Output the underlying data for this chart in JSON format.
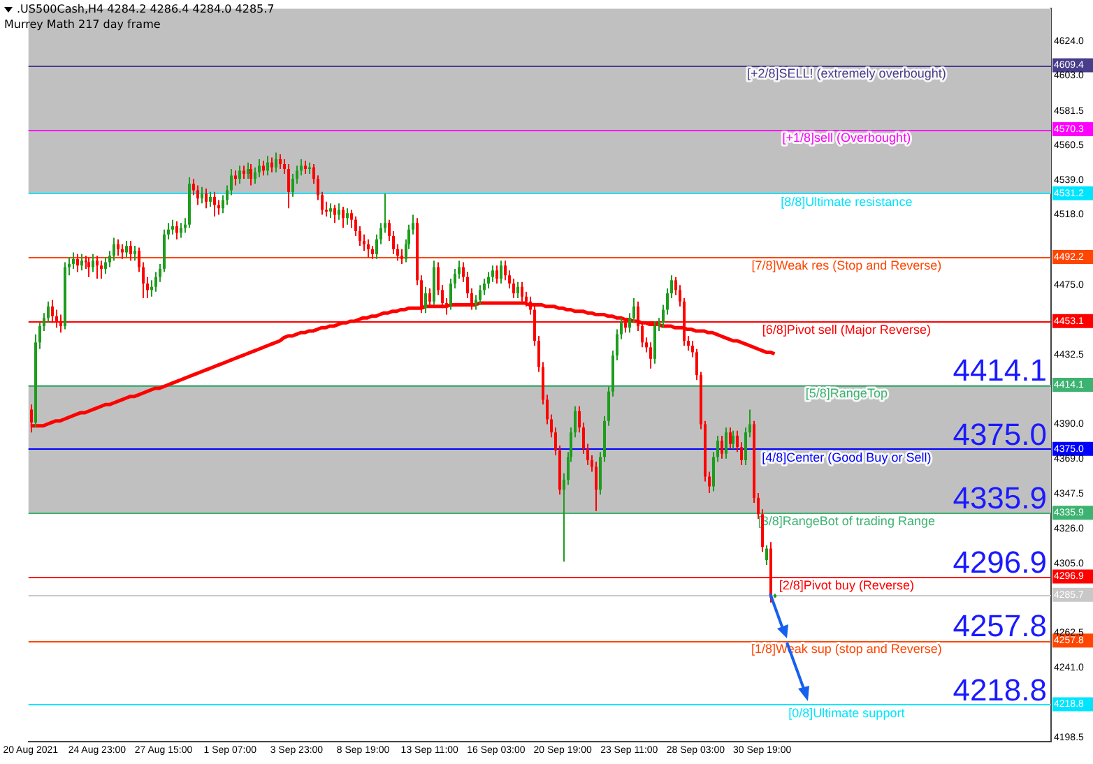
{
  "chart_data": {
    "type": "candlestick",
    "title": ".US500Cash,H4  4284.2 4286.4 4284.0 4285.7",
    "subtitle": "Murrey Math 217 day frame",
    "categories": [
      "20 Aug 2021",
      null,
      null,
      null,
      null,
      null,
      null,
      null,
      null,
      null,
      null,
      null,
      null,
      null,
      null,
      null,
      "24 Aug 23:00",
      null,
      null,
      null,
      null,
      null,
      null,
      null,
      null,
      null,
      null,
      null,
      null,
      null,
      null,
      null,
      "27 Aug 15:00",
      null,
      null,
      null,
      null,
      null,
      null,
      null,
      null,
      null,
      null,
      null,
      null,
      null,
      null,
      null,
      "1 Sep 07:00",
      null,
      null,
      null,
      null,
      null,
      null,
      null,
      null,
      null,
      null,
      null,
      null,
      null,
      null,
      null,
      "3 Sep 23:00",
      null,
      null,
      null,
      null,
      null,
      null,
      null,
      null,
      null,
      null,
      null,
      null,
      null,
      null,
      null,
      "8 Sep 19:00",
      null,
      null,
      null,
      null,
      null,
      null,
      null,
      null,
      null,
      null,
      null,
      null,
      null,
      null,
      null,
      "13 Sep 11:00",
      null,
      null,
      null,
      null,
      null,
      null,
      null,
      null,
      null,
      null,
      null,
      null,
      null,
      null,
      null,
      "16 Sep 03:00",
      null,
      null,
      null,
      null,
      null,
      null,
      null,
      null,
      null,
      null,
      null,
      null,
      null,
      null,
      null,
      "20 Sep 19:00",
      null,
      null,
      null,
      null,
      null,
      null,
      null,
      null,
      null,
      null,
      null,
      null,
      null,
      null,
      null,
      "23 Sep 11:00",
      null,
      null,
      null,
      null,
      null,
      null,
      null,
      null,
      null,
      null,
      null,
      null,
      null,
      null,
      null,
      "28 Sep 03:00",
      null,
      null,
      null,
      null,
      null,
      null,
      null,
      null,
      null,
      null,
      null,
      null,
      null,
      null,
      null,
      "30 Sep 19:00",
      null,
      null,
      null,
      null,
      null,
      null,
      null,
      null,
      null,
      null,
      null,
      null,
      null,
      null,
      null,
      null,
      null,
      null,
      null,
      null,
      null,
      null,
      null,
      null,
      null,
      null,
      null,
      null,
      null,
      null,
      null,
      null,
      null,
      null,
      null,
      null,
      null,
      null,
      null,
      null,
      null,
      null,
      null,
      null,
      null,
      null,
      null,
      null,
      null,
      null,
      null,
      null,
      null,
      null,
      null,
      null,
      null,
      null,
      null,
      null,
      null,
      null,
      null,
      null,
      null,
      null,
      null,
      null,
      null
    ],
    "ohlc": [
      [
        4399,
        4402,
        4385,
        4391
      ],
      [
        4391,
        4445,
        4388,
        4440
      ],
      [
        4440,
        4452,
        4436,
        4450
      ],
      [
        4450,
        4458,
        4447,
        4455
      ],
      [
        4455,
        4465,
        4452,
        4462
      ],
      [
        4462,
        4466,
        4452,
        4456
      ],
      [
        4456,
        4460,
        4449,
        4453
      ],
      [
        4453,
        4457,
        4446,
        4450
      ],
      [
        4450,
        4489,
        4448,
        4486
      ],
      [
        4486,
        4492,
        4481,
        4488
      ],
      [
        4488,
        4495,
        4485,
        4491
      ],
      [
        4491,
        4494,
        4483,
        4487
      ],
      [
        4487,
        4494,
        4484,
        4490
      ],
      [
        4490,
        4493,
        4485,
        4489
      ],
      [
        4489,
        4492,
        4480,
        4486
      ],
      [
        4486,
        4494,
        4483,
        4490
      ],
      [
        4490,
        4493,
        4479,
        4487
      ],
      [
        4487,
        4490,
        4479,
        4485
      ],
      [
        4485,
        4492,
        4482,
        4489
      ],
      [
        4489,
        4496,
        4486,
        4493
      ],
      [
        4493,
        4504,
        4490,
        4500
      ],
      [
        4500,
        4503,
        4493,
        4497
      ],
      [
        4497,
        4500,
        4491,
        4495
      ],
      [
        4495,
        4502,
        4492,
        4499
      ],
      [
        4499,
        4502,
        4490,
        4494
      ],
      [
        4494,
        4499,
        4490,
        4496
      ],
      [
        4496,
        4498,
        4483,
        4486
      ],
      [
        4486,
        4489,
        4467,
        4476
      ],
      [
        4476,
        4480,
        4467,
        4472
      ],
      [
        4472,
        4478,
        4468,
        4474
      ],
      [
        4474,
        4483,
        4471,
        4480
      ],
      [
        4480,
        4488,
        4477,
        4485
      ],
      [
        4485,
        4509,
        4483,
        4506
      ],
      [
        4506,
        4513,
        4503,
        4509
      ],
      [
        4509,
        4515,
        4506,
        4511
      ],
      [
        4511,
        4514,
        4503,
        4507
      ],
      [
        4507,
        4513,
        4504,
        4510
      ],
      [
        4510,
        4516,
        4507,
        4512
      ],
      [
        4512,
        4541,
        4510,
        4537
      ],
      [
        4537,
        4540,
        4530,
        4533
      ],
      [
        4533,
        4536,
        4524,
        4528
      ],
      [
        4528,
        4535,
        4525,
        4531
      ],
      [
        4531,
        4534,
        4522,
        4526
      ],
      [
        4526,
        4532,
        4523,
        4529
      ],
      [
        4529,
        4532,
        4517,
        4524
      ],
      [
        4524,
        4527,
        4518,
        4522
      ],
      [
        4522,
        4530,
        4519,
        4527
      ],
      [
        4527,
        4536,
        4524,
        4533
      ],
      [
        4533,
        4546,
        4530,
        4542
      ],
      [
        4542,
        4545,
        4536,
        4540
      ],
      [
        4540,
        4548,
        4537,
        4545
      ],
      [
        4545,
        4548,
        4540,
        4543
      ],
      [
        4543,
        4550,
        4540,
        4546
      ],
      [
        4546,
        4549,
        4536,
        4540
      ],
      [
        4540,
        4547,
        4537,
        4544
      ],
      [
        4544,
        4552,
        4541,
        4548
      ],
      [
        4548,
        4551,
        4542,
        4545
      ],
      [
        4545,
        4554,
        4542,
        4550
      ],
      [
        4550,
        4553,
        4544,
        4547
      ],
      [
        4547,
        4556,
        4544,
        4552
      ],
      [
        4552,
        4555,
        4546,
        4549
      ],
      [
        4549,
        4552,
        4543,
        4546
      ],
      [
        4546,
        4549,
        4522,
        4532
      ],
      [
        4532,
        4543,
        4529,
        4540
      ],
      [
        4540,
        4548,
        4537,
        4545
      ],
      [
        4545,
        4552,
        4542,
        4548
      ],
      [
        4548,
        4551,
        4543,
        4546
      ],
      [
        4546,
        4550,
        4543,
        4547
      ],
      [
        4547,
        4549,
        4537,
        4540
      ],
      [
        4540,
        4542,
        4527,
        4530
      ],
      [
        4530,
        4532,
        4518,
        4521
      ],
      [
        4521,
        4526,
        4517,
        4520
      ],
      [
        4520,
        4525,
        4516,
        4522
      ],
      [
        4522,
        4524,
        4513,
        4518
      ],
      [
        4518,
        4525,
        4515,
        4521
      ],
      [
        4521,
        4523,
        4510,
        4516
      ],
      [
        4516,
        4522,
        4512,
        4519
      ],
      [
        4519,
        4521,
        4510,
        4515
      ],
      [
        4515,
        4517,
        4505,
        4508
      ],
      [
        4508,
        4511,
        4499,
        4502
      ],
      [
        4502,
        4506,
        4496,
        4500
      ],
      [
        4500,
        4503,
        4492,
        4497
      ],
      [
        4497,
        4499,
        4491,
        4494
      ],
      [
        4494,
        4506,
        4491,
        4503
      ],
      [
        4503,
        4513,
        4500,
        4510
      ],
      [
        4510,
        4531,
        4507,
        4513
      ],
      [
        4513,
        4515,
        4502,
        4505
      ],
      [
        4505,
        4508,
        4494,
        4497
      ],
      [
        4497,
        4500,
        4490,
        4493
      ],
      [
        4493,
        4497,
        4488,
        4491
      ],
      [
        4491,
        4503,
        4489,
        4500
      ],
      [
        4500,
        4512,
        4497,
        4509
      ],
      [
        4509,
        4518,
        4506,
        4513
      ],
      [
        4513,
        4516,
        4475,
        4478
      ],
      [
        4478,
        4481,
        4458,
        4461
      ],
      [
        4461,
        4474,
        4458,
        4470
      ],
      [
        4470,
        4473,
        4462,
        4465
      ],
      [
        4465,
        4490,
        4463,
        4486
      ],
      [
        4486,
        4489,
        4469,
        4472
      ],
      [
        4472,
        4475,
        4461,
        4464
      ],
      [
        4464,
        4467,
        4457,
        4463
      ],
      [
        4463,
        4479,
        4460,
        4476
      ],
      [
        4476,
        4485,
        4473,
        4482
      ],
      [
        4482,
        4490,
        4479,
        4486
      ],
      [
        4486,
        4489,
        4477,
        4480
      ],
      [
        4480,
        4483,
        4467,
        4470
      ],
      [
        4470,
        4473,
        4460,
        4463
      ],
      [
        4463,
        4469,
        4460,
        4466
      ],
      [
        4466,
        4475,
        4463,
        4472
      ],
      [
        4472,
        4479,
        4469,
        4476
      ],
      [
        4476,
        4483,
        4473,
        4480
      ],
      [
        4480,
        4487,
        4477,
        4484
      ],
      [
        4484,
        4487,
        4476,
        4479
      ],
      [
        4479,
        4490,
        4476,
        4487
      ],
      [
        4487,
        4490,
        4478,
        4481
      ],
      [
        4481,
        4484,
        4473,
        4476
      ],
      [
        4476,
        4479,
        4467,
        4470
      ],
      [
        4470,
        4477,
        4467,
        4474
      ],
      [
        4474,
        4477,
        4465,
        4468
      ],
      [
        4468,
        4471,
        4462,
        4465
      ],
      [
        4465,
        4468,
        4457,
        4460
      ],
      [
        4460,
        4463,
        4438,
        4441
      ],
      [
        4441,
        4444,
        4422,
        4425
      ],
      [
        4425,
        4428,
        4402,
        4405
      ],
      [
        4405,
        4408,
        4390,
        4393
      ],
      [
        4393,
        4396,
        4382,
        4385
      ],
      [
        4385,
        4388,
        4371,
        4374
      ],
      [
        4374,
        4377,
        4347,
        4350
      ],
      [
        4350,
        4360,
        4306,
        4356
      ],
      [
        4356,
        4373,
        4353,
        4370
      ],
      [
        4370,
        4388,
        4367,
        4385
      ],
      [
        4385,
        4401,
        4382,
        4398
      ],
      [
        4398,
        4401,
        4385,
        4388
      ],
      [
        4388,
        4391,
        4372,
        4375
      ],
      [
        4375,
        4378,
        4365,
        4368
      ],
      [
        4368,
        4371,
        4361,
        4364
      ],
      [
        4364,
        4367,
        4337,
        4350
      ],
      [
        4350,
        4373,
        4347,
        4370
      ],
      [
        4370,
        4395,
        4367,
        4392
      ],
      [
        4392,
        4413,
        4389,
        4410
      ],
      [
        4410,
        4435,
        4407,
        4432
      ],
      [
        4432,
        4448,
        4429,
        4445
      ],
      [
        4445,
        4455,
        4442,
        4452
      ],
      [
        4452,
        4455,
        4446,
        4449
      ],
      [
        4449,
        4458,
        4446,
        4455
      ],
      [
        4455,
        4467,
        4452,
        4462
      ],
      [
        4462,
        4465,
        4447,
        4450
      ],
      [
        4450,
        4453,
        4437,
        4440
      ],
      [
        4440,
        4443,
        4434,
        4437
      ],
      [
        4437,
        4440,
        4424,
        4430
      ],
      [
        4430,
        4453,
        4427,
        4450
      ],
      [
        4450,
        4455,
        4447,
        4452
      ],
      [
        4452,
        4463,
        4449,
        4460
      ],
      [
        4460,
        4473,
        4457,
        4470
      ],
      [
        4470,
        4481,
        4467,
        4478
      ],
      [
        4478,
        4480,
        4469,
        4472
      ],
      [
        4472,
        4475,
        4462,
        4465
      ],
      [
        4465,
        4467,
        4438,
        4441
      ],
      [
        4441,
        4444,
        4435,
        4438
      ],
      [
        4438,
        4441,
        4431,
        4434
      ],
      [
        4434,
        4436,
        4417,
        4420
      ],
      [
        4420,
        4422,
        4387,
        4390
      ],
      [
        4390,
        4392,
        4355,
        4358
      ],
      [
        4358,
        4361,
        4348,
        4352
      ],
      [
        4352,
        4373,
        4349,
        4370
      ],
      [
        4370,
        4383,
        4367,
        4380
      ],
      [
        4380,
        4383,
        4369,
        4372
      ],
      [
        4372,
        4388,
        4369,
        4385
      ],
      [
        4385,
        4388,
        4375,
        4378
      ],
      [
        4378,
        4386,
        4375,
        4383
      ],
      [
        4383,
        4386,
        4373,
        4376
      ],
      [
        4376,
        4379,
        4365,
        4368
      ],
      [
        4368,
        4388,
        4365,
        4385
      ],
      [
        4385,
        4399,
        4382,
        4390
      ],
      [
        4390,
        4392,
        4342,
        4345
      ],
      [
        4345,
        4348,
        4332,
        4335
      ],
      [
        4335,
        4338,
        4312,
        4315
      ],
      [
        4307,
        4316,
        4304,
        4314
      ],
      [
        4314,
        4318,
        4281,
        4284
      ],
      [
        4284.2,
        4286.4,
        4284.0,
        4285.7
      ],
      null,
      null,
      null,
      null,
      null,
      null,
      null,
      null,
      null,
      null,
      null,
      null,
      null,
      null,
      null,
      null,
      null,
      null,
      null,
      null,
      null,
      null,
      null,
      null,
      null,
      null,
      null,
      null,
      null,
      null,
      null,
      null,
      null,
      null,
      null,
      null,
      null,
      null,
      null,
      null,
      null,
      null,
      null,
      null,
      null,
      null,
      null,
      null,
      null,
      null,
      null,
      null,
      null,
      null,
      null,
      null,
      null,
      null,
      null,
      null,
      null,
      null,
      null,
      null,
      null,
      null
    ],
    "series": [
      {
        "type": "line",
        "color": "#ff0000",
        "values": [
          4389,
          4389,
          4389,
          4389,
          4390,
          4391,
          4392,
          4392,
          4393,
          4394,
          4395,
          4396,
          4397,
          4397,
          4398,
          4399,
          4400,
          4401,
          4402,
          4402,
          4403,
          4404,
          4405,
          4406,
          4407,
          4407,
          4408,
          4409,
          4410,
          4411,
          4412,
          4412,
          4413,
          4414,
          4415,
          4416,
          4417,
          4418,
          4419,
          4420,
          4421,
          4422,
          4423,
          4424,
          4425,
          4426,
          4427,
          4428,
          4429,
          4430,
          4431,
          4432,
          4433,
          4434,
          4435,
          4436,
          4437,
          4438,
          4439,
          4440,
          4441,
          4443,
          4444,
          4444,
          4445,
          4446,
          4446,
          4447,
          4447,
          4448,
          4449,
          4449,
          4450,
          4450,
          4451,
          4452,
          4452,
          4453,
          4453,
          4454,
          4455,
          4455,
          4456,
          4456,
          4457,
          4458,
          4458,
          4459,
          4459,
          4460,
          4460,
          4461,
          4461,
          4461,
          4461,
          4462,
          4462,
          4462,
          4462,
          4462,
          4462,
          4463,
          4463,
          4463,
          4463,
          4463,
          4463,
          4463,
          4464,
          4464,
          4464,
          4464,
          4464,
          4464,
          4464,
          4464,
          4464,
          4464,
          4464,
          4464,
          4463,
          4463,
          4463,
          4463,
          4462,
          4462,
          4462,
          4461,
          4461,
          4460,
          4460,
          4459,
          4459,
          4459,
          4458,
          4458,
          4457,
          4457,
          4457,
          4456,
          4456,
          4455,
          4455,
          4454,
          4454,
          4453,
          4453,
          4452,
          4452,
          4451,
          4451,
          4451,
          4450,
          4450,
          4450,
          4449,
          4449,
          4449,
          4448,
          4448,
          4447,
          4447,
          4447,
          4446,
          4446,
          4445,
          4444,
          4443,
          4442,
          4441,
          4441,
          4440,
          4439,
          4438,
          4437,
          4436,
          4435,
          4434,
          4434,
          4433,
          null,
          null,
          null,
          null,
          null,
          null,
          null,
          null,
          null,
          null,
          null,
          null,
          null,
          null,
          null,
          null,
          null,
          null,
          null,
          null,
          null,
          null,
          null,
          null,
          null,
          null,
          null,
          null,
          null,
          null,
          null,
          null,
          null,
          null,
          null,
          null,
          null,
          null,
          null,
          null,
          null,
          null,
          null,
          null,
          null,
          null,
          null,
          null,
          null,
          null,
          null,
          null,
          null,
          null,
          null,
          null,
          null,
          null,
          null,
          null,
          null,
          null,
          null,
          null,
          null,
          null
        ]
      }
    ],
    "marker": "none",
    "ylim": [
      4196,
      4644
    ],
    "yticks": [
      4198.5,
      4218.8,
      {
        "value": 4241,
        "label": "4241.0"
      },
      4257.8,
      4262.5,
      4285.7,
      4296.9,
      {
        "value": 4305,
        "label": "4305.0"
      },
      {
        "value": 4326,
        "label": "4326.0"
      },
      4335.9,
      4347.5,
      {
        "value": 4369,
        "label": "4369.0"
      },
      {
        "value": 4375,
        "label": "4375.0"
      },
      {
        "value": 4390,
        "label": "4390.0"
      },
      4414.1,
      4432.5,
      4453.1,
      {
        "value": 4475,
        "label": "4475.0"
      },
      4492.2,
      {
        "value": 4518,
        "label": "4518.0"
      },
      4531.2,
      {
        "value": 4539,
        "label": "4539.0"
      },
      4560.5,
      4570.3,
      4581.5,
      {
        "value": 4603,
        "label": "4603.0"
      },
      4609.4,
      {
        "value": 4624,
        "label": "4624.0"
      }
    ],
    "bands": [
      {
        "axis": "y",
        "from": 4531.2,
        "to": 4644,
        "color": "#c0c0c0"
      },
      {
        "axis": "y",
        "from": 4335.9,
        "to": 4414.1,
        "color": "#c0c0c0"
      }
    ],
    "ref_lines": [
      {
        "axis": "y",
        "value": 4609.4,
        "label": "[+2/8]SELL! (extremely overbought)",
        "color": "#483d8b"
      },
      {
        "axis": "y",
        "value": 4570.3,
        "label": "[+1/8]sell (Overbought)",
        "color": "#ff00ff"
      },
      {
        "axis": "y",
        "value": 4531.2,
        "label": "[8/8]Ultimate resistance",
        "color": "#00e5ff"
      },
      {
        "axis": "y",
        "value": 4492.2,
        "label": "[7/8]Weak res (Stop and Reverse)",
        "color": "#ff4500"
      },
      {
        "axis": "y",
        "value": 4453.1,
        "label": "[6/8]Pivot sell (Major Reverse)",
        "color": "#ff0000"
      },
      {
        "axis": "y",
        "value": 4414.1,
        "label": "[5/8]RangeTop",
        "color": "#3cb371"
      },
      {
        "axis": "y",
        "value": 4375.0,
        "label": "[4/8]Center (Good Buy or Sell)",
        "color": "#0000ff"
      },
      {
        "axis": "y",
        "value": 4335.9,
        "label": "[3/8]RangeBot of trading Range",
        "color": "#3cb371"
      },
      {
        "axis": "y",
        "value": 4296.9,
        "label": "[2/8]Pivot buy (Reverse)",
        "color": "#ff0000"
      },
      {
        "axis": "y",
        "value": 4285.7,
        "color": "#c8c8c8"
      },
      {
        "axis": "y",
        "value": 4257.8,
        "label": "[1/8]Weak sup (stop and Reverse)",
        "color": "#ff4500"
      },
      {
        "axis": "y",
        "value": 4218.8,
        "label": "[0/8]Ultimate support",
        "color": "#00e5ff"
      }
    ],
    "annotations": [
      {
        "text": "4414.1",
        "y": 4414.1
      },
      {
        "text": "4375.0",
        "y": 4375.0
      },
      {
        "text": "4335.9",
        "y": 4335.9
      },
      {
        "text": "4296.9",
        "y": 4296.9
      },
      {
        "text": "4257.8",
        "y": 4257.8
      },
      {
        "text": "4218.8",
        "y": 4218.8
      }
    ]
  }
}
